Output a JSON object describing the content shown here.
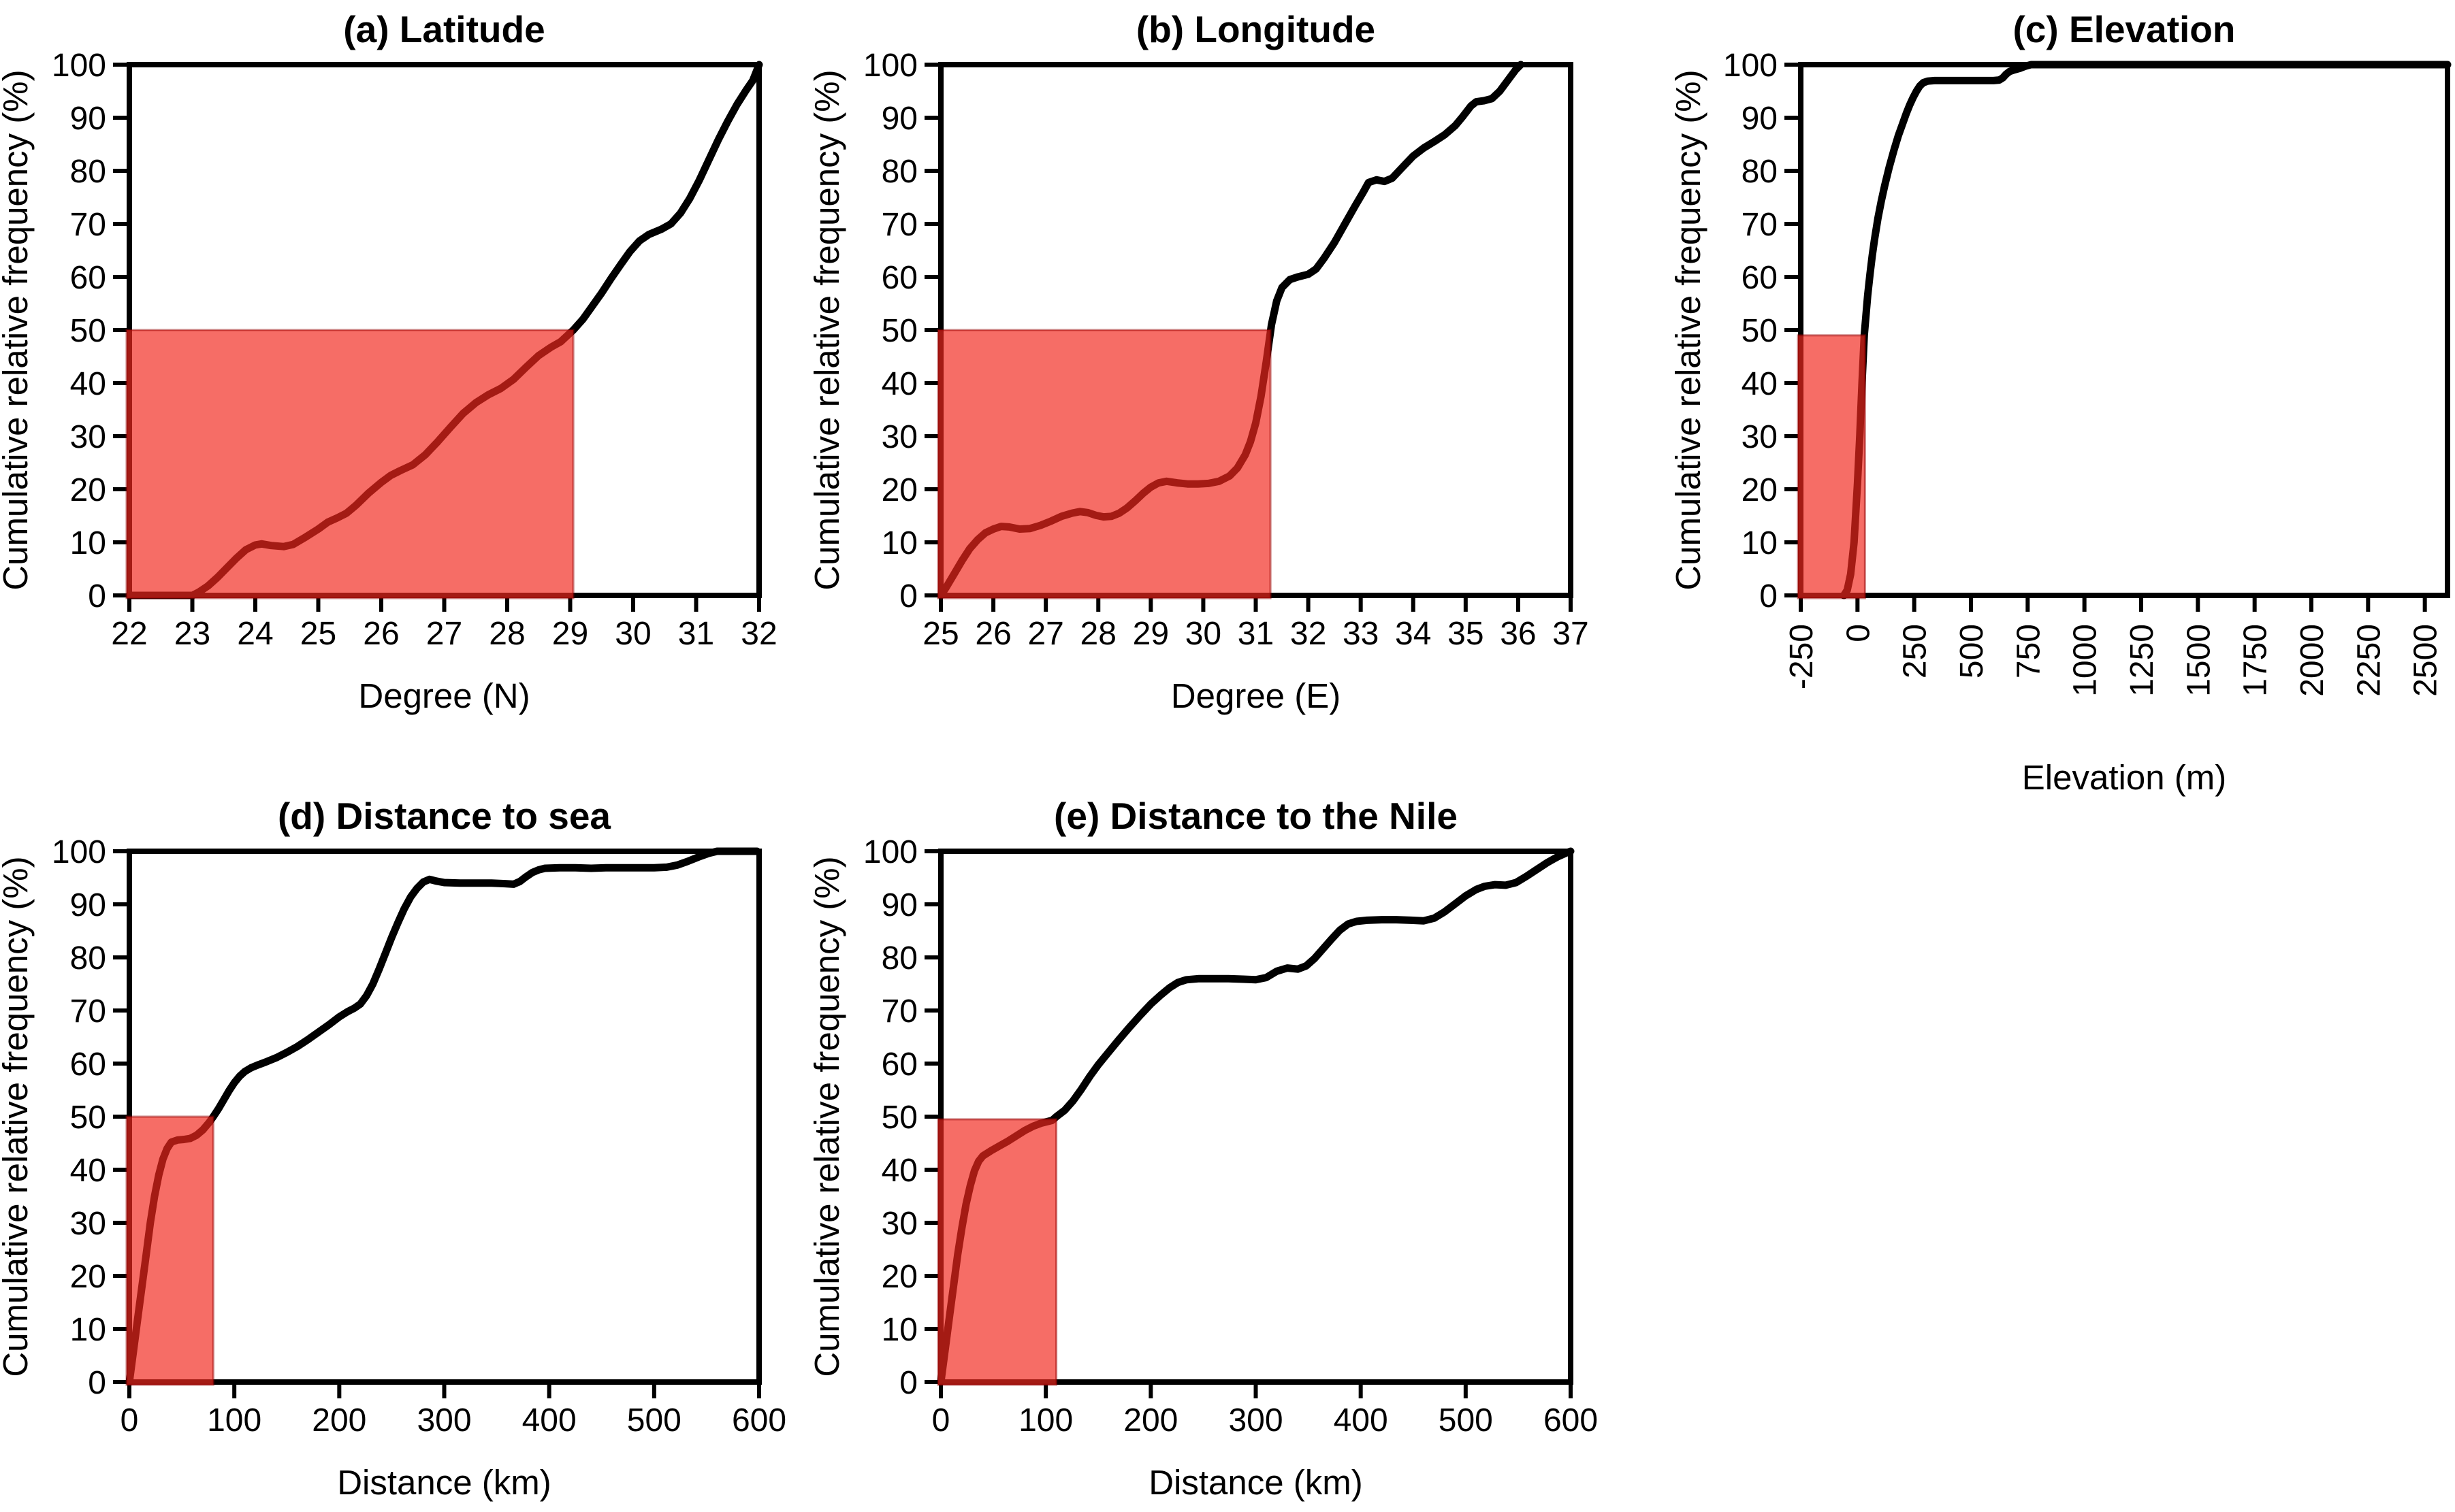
{
  "figure": {
    "background": "#ffffff",
    "curve_color": "#000000",
    "shade_fill_rgba": "rgba(242,40,30,0.68)",
    "shade_edge_rgba": "rgba(150,0,0,0.5)",
    "axis_color": "#000000",
    "ylabel": "Cumulative relative frequency (%)"
  },
  "chart_data": [
    {
      "type": "line",
      "id": "a",
      "title": "(a) Latitude",
      "xlabel": "Degree (N)",
      "ylabel": "Cumulative relative frequency (%)",
      "xlim": [
        22,
        32
      ],
      "ylim": [
        0,
        100
      ],
      "xticks": [
        22,
        23,
        24,
        25,
        26,
        27,
        28,
        29,
        30,
        31,
        32
      ],
      "yticks": [
        0,
        10,
        20,
        30,
        40,
        50,
        60,
        70,
        80,
        90,
        100
      ],
      "xtick_rotation": 0,
      "grid": false,
      "median_x": 29.05,
      "shade": {
        "x0": 22,
        "x1": 29.05,
        "y0": 0,
        "y1": 50
      },
      "series": [
        [
          22,
          0
        ],
        [
          23,
          0
        ],
        [
          23.1,
          0.6
        ],
        [
          23.25,
          1.8
        ],
        [
          23.4,
          3.4
        ],
        [
          23.55,
          5.2
        ],
        [
          23.7,
          7
        ],
        [
          23.85,
          8.6
        ],
        [
          24,
          9.5
        ],
        [
          24.1,
          9.7
        ],
        [
          24.25,
          9.4
        ],
        [
          24.45,
          9.2
        ],
        [
          24.6,
          9.6
        ],
        [
          24.8,
          11
        ],
        [
          25,
          12.5
        ],
        [
          25.15,
          13.8
        ],
        [
          25.3,
          14.6
        ],
        [
          25.45,
          15.5
        ],
        [
          25.6,
          17
        ],
        [
          25.8,
          19.3
        ],
        [
          26,
          21.3
        ],
        [
          26.15,
          22.6
        ],
        [
          26.3,
          23.5
        ],
        [
          26.5,
          24.6
        ],
        [
          26.7,
          26.5
        ],
        [
          26.9,
          29
        ],
        [
          27.1,
          31.7
        ],
        [
          27.3,
          34.3
        ],
        [
          27.5,
          36.3
        ],
        [
          27.7,
          37.8
        ],
        [
          27.9,
          39
        ],
        [
          28.1,
          40.7
        ],
        [
          28.3,
          43
        ],
        [
          28.5,
          45.2
        ],
        [
          28.7,
          46.8
        ],
        [
          28.85,
          47.8
        ],
        [
          29.05,
          50
        ],
        [
          29.2,
          52
        ],
        [
          29.35,
          54.5
        ],
        [
          29.5,
          57
        ],
        [
          29.65,
          59.7
        ],
        [
          29.8,
          62.3
        ],
        [
          29.95,
          64.8
        ],
        [
          30.1,
          66.8
        ],
        [
          30.25,
          68
        ],
        [
          30.45,
          69
        ],
        [
          30.6,
          70
        ],
        [
          30.75,
          72
        ],
        [
          30.9,
          74.8
        ],
        [
          31.05,
          78.2
        ],
        [
          31.2,
          82
        ],
        [
          31.35,
          85.8
        ],
        [
          31.5,
          89.3
        ],
        [
          31.65,
          92.5
        ],
        [
          31.8,
          95.3
        ],
        [
          31.9,
          97
        ],
        [
          32,
          100
        ]
      ]
    },
    {
      "type": "line",
      "id": "b",
      "title": "(b) Longitude",
      "xlabel": "Degree (E)",
      "ylabel": "Cumulative relative frequency (%)",
      "xlim": [
        25,
        37
      ],
      "ylim": [
        0,
        100
      ],
      "xticks": [
        25,
        26,
        27,
        28,
        29,
        30,
        31,
        32,
        33,
        34,
        35,
        36,
        37
      ],
      "yticks": [
        0,
        10,
        20,
        30,
        40,
        50,
        60,
        70,
        80,
        90,
        100
      ],
      "xtick_rotation": 0,
      "grid": false,
      "median_x": 31.28,
      "shade": {
        "x0": 25,
        "x1": 31.28,
        "y0": 0,
        "y1": 50
      },
      "series": [
        [
          25,
          0
        ],
        [
          25.1,
          1.5
        ],
        [
          25.25,
          4
        ],
        [
          25.4,
          6.5
        ],
        [
          25.55,
          8.8
        ],
        [
          25.7,
          10.5
        ],
        [
          25.85,
          11.8
        ],
        [
          26,
          12.5
        ],
        [
          26.15,
          13
        ],
        [
          26.3,
          12.9
        ],
        [
          26.5,
          12.5
        ],
        [
          26.7,
          12.6
        ],
        [
          26.9,
          13.2
        ],
        [
          27.1,
          14
        ],
        [
          27.3,
          14.9
        ],
        [
          27.5,
          15.5
        ],
        [
          27.65,
          15.8
        ],
        [
          27.8,
          15.6
        ],
        [
          27.95,
          15.1
        ],
        [
          28.1,
          14.8
        ],
        [
          28.25,
          14.9
        ],
        [
          28.4,
          15.5
        ],
        [
          28.55,
          16.5
        ],
        [
          28.7,
          17.8
        ],
        [
          28.85,
          19.2
        ],
        [
          29,
          20.4
        ],
        [
          29.15,
          21.2
        ],
        [
          29.3,
          21.5
        ],
        [
          29.5,
          21.2
        ],
        [
          29.7,
          21
        ],
        [
          29.9,
          21
        ],
        [
          30.1,
          21.1
        ],
        [
          30.3,
          21.5
        ],
        [
          30.5,
          22.5
        ],
        [
          30.65,
          24
        ],
        [
          30.8,
          26.5
        ],
        [
          30.9,
          29
        ],
        [
          31,
          32.5
        ],
        [
          31.1,
          37.5
        ],
        [
          31.2,
          44
        ],
        [
          31.3,
          51
        ],
        [
          31.4,
          55.5
        ],
        [
          31.5,
          58
        ],
        [
          31.65,
          59.5
        ],
        [
          31.8,
          60
        ],
        [
          32,
          60.5
        ],
        [
          32.15,
          61.5
        ],
        [
          32.3,
          63.5
        ],
        [
          32.5,
          66.5
        ],
        [
          32.7,
          70
        ],
        [
          32.9,
          73.5
        ],
        [
          33.05,
          76
        ],
        [
          33.15,
          77.8
        ],
        [
          33.3,
          78.3
        ],
        [
          33.45,
          78
        ],
        [
          33.6,
          78.6
        ],
        [
          33.8,
          80.7
        ],
        [
          34,
          82.8
        ],
        [
          34.2,
          84.3
        ],
        [
          34.4,
          85.5
        ],
        [
          34.6,
          86.8
        ],
        [
          34.8,
          88.5
        ],
        [
          34.95,
          90.3
        ],
        [
          35.1,
          92.2
        ],
        [
          35.2,
          93
        ],
        [
          35.35,
          93.2
        ],
        [
          35.5,
          93.6
        ],
        [
          35.65,
          95
        ],
        [
          35.8,
          97
        ],
        [
          35.95,
          99
        ],
        [
          36.05,
          100
        ]
      ]
    },
    {
      "type": "line",
      "id": "c",
      "title": "(c) Elevation",
      "xlabel": "Elevation (m)",
      "ylabel": "Cumulative relative frequency (%)",
      "xlim": [
        -250,
        2600
      ],
      "ylim": [
        0,
        100
      ],
      "xticks": [
        -250,
        0,
        250,
        500,
        750,
        1000,
        1250,
        1500,
        1750,
        2000,
        2250,
        2500
      ],
      "yticks": [
        0,
        10,
        20,
        30,
        40,
        50,
        60,
        70,
        80,
        90,
        100
      ],
      "xtick_rotation": -90,
      "grid": false,
      "median_x": 33,
      "shade": {
        "x0": -250,
        "x1": 33,
        "y0": 0,
        "y1": 49
      },
      "series": [
        [
          -60,
          0
        ],
        [
          -45,
          1
        ],
        [
          -30,
          4
        ],
        [
          -15,
          10
        ],
        [
          0,
          21
        ],
        [
          10,
          30
        ],
        [
          20,
          40
        ],
        [
          30,
          49
        ],
        [
          36,
          52
        ],
        [
          45,
          56.5
        ],
        [
          55,
          60.5
        ],
        [
          65,
          64
        ],
        [
          75,
          67
        ],
        [
          90,
          71
        ],
        [
          105,
          74.3
        ],
        [
          120,
          77.2
        ],
        [
          140,
          80.7
        ],
        [
          160,
          83.8
        ],
        [
          180,
          86.6
        ],
        [
          200,
          89
        ],
        [
          215,
          90.8
        ],
        [
          230,
          92.4
        ],
        [
          245,
          93.8
        ],
        [
          260,
          95
        ],
        [
          275,
          96
        ],
        [
          290,
          96.6
        ],
        [
          310,
          96.9
        ],
        [
          340,
          97
        ],
        [
          400,
          97
        ],
        [
          500,
          97
        ],
        [
          600,
          97
        ],
        [
          625,
          97.1
        ],
        [
          640,
          97.5
        ],
        [
          655,
          98.2
        ],
        [
          670,
          98.7
        ],
        [
          690,
          99
        ],
        [
          715,
          99.3
        ],
        [
          740,
          99.7
        ],
        [
          765,
          100
        ],
        [
          2600,
          100
        ]
      ]
    },
    {
      "type": "line",
      "id": "d",
      "title": "(d) Distance to sea",
      "xlabel": "Distance (km)",
      "ylabel": "Cumulative relative frequency (%)",
      "xlim": [
        0,
        600
      ],
      "ylim": [
        0,
        100
      ],
      "xticks": [
        0,
        100,
        200,
        300,
        400,
        500,
        600
      ],
      "yticks": [
        0,
        10,
        20,
        30,
        40,
        50,
        60,
        70,
        80,
        90,
        100
      ],
      "xtick_rotation": 0,
      "grid": false,
      "median_x": 80,
      "shade": {
        "x0": 0,
        "x1": 80,
        "y0": 0,
        "y1": 50
      },
      "series": [
        [
          0,
          0
        ],
        [
          4,
          6
        ],
        [
          8,
          12
        ],
        [
          12,
          18
        ],
        [
          16,
          24
        ],
        [
          20,
          30
        ],
        [
          24,
          35
        ],
        [
          28,
          39
        ],
        [
          32,
          42
        ],
        [
          36,
          44
        ],
        [
          40,
          45.2
        ],
        [
          46,
          45.6
        ],
        [
          52,
          45.7
        ],
        [
          58,
          45.9
        ],
        [
          64,
          46.5
        ],
        [
          70,
          47.5
        ],
        [
          76,
          48.9
        ],
        [
          80,
          50
        ],
        [
          85,
          51.5
        ],
        [
          90,
          53.2
        ],
        [
          95,
          54.9
        ],
        [
          100,
          56.4
        ],
        [
          105,
          57.6
        ],
        [
          110,
          58.5
        ],
        [
          116,
          59.2
        ],
        [
          122,
          59.7
        ],
        [
          130,
          60.3
        ],
        [
          140,
          61.1
        ],
        [
          150,
          62.1
        ],
        [
          160,
          63.2
        ],
        [
          170,
          64.5
        ],
        [
          180,
          65.9
        ],
        [
          190,
          67.3
        ],
        [
          200,
          68.8
        ],
        [
          208,
          69.8
        ],
        [
          214,
          70.4
        ],
        [
          220,
          71.2
        ],
        [
          226,
          72.8
        ],
        [
          232,
          75
        ],
        [
          238,
          77.8
        ],
        [
          244,
          80.8
        ],
        [
          250,
          83.8
        ],
        [
          256,
          86.6
        ],
        [
          262,
          89.2
        ],
        [
          268,
          91.4
        ],
        [
          274,
          93
        ],
        [
          280,
          94.2
        ],
        [
          286,
          94.7
        ],
        [
          292,
          94.4
        ],
        [
          300,
          94.1
        ],
        [
          315,
          94
        ],
        [
          330,
          94
        ],
        [
          345,
          94
        ],
        [
          358,
          93.9
        ],
        [
          366,
          93.8
        ],
        [
          372,
          94.3
        ],
        [
          378,
          95.2
        ],
        [
          384,
          96
        ],
        [
          390,
          96.5
        ],
        [
          396,
          96.8
        ],
        [
          410,
          96.9
        ],
        [
          425,
          96.9
        ],
        [
          440,
          96.8
        ],
        [
          455,
          96.9
        ],
        [
          470,
          96.9
        ],
        [
          485,
          96.9
        ],
        [
          500,
          96.9
        ],
        [
          512,
          97
        ],
        [
          522,
          97.4
        ],
        [
          532,
          98.1
        ],
        [
          542,
          98.9
        ],
        [
          552,
          99.6
        ],
        [
          560,
          100
        ],
        [
          598,
          100
        ]
      ]
    },
    {
      "type": "line",
      "id": "e",
      "title": "(e) Distance to the Nile",
      "xlabel": "Distance (km)",
      "ylabel": "Cumulative relative frequency (%)",
      "xlim": [
        0,
        600
      ],
      "ylim": [
        0,
        100
      ],
      "xticks": [
        0,
        100,
        200,
        300,
        400,
        500,
        600
      ],
      "yticks": [
        0,
        10,
        20,
        30,
        40,
        50,
        60,
        70,
        80,
        90,
        100
      ],
      "xtick_rotation": 0,
      "grid": false,
      "median_x": 110,
      "shade": {
        "x0": 0,
        "x1": 110,
        "y0": 0,
        "y1": 49.5
      },
      "series": [
        [
          0,
          0
        ],
        [
          4,
          6
        ],
        [
          8,
          12
        ],
        [
          12,
          18
        ],
        [
          16,
          24
        ],
        [
          20,
          29
        ],
        [
          24,
          33.5
        ],
        [
          28,
          37
        ],
        [
          32,
          39.8
        ],
        [
          36,
          41.6
        ],
        [
          40,
          42.6
        ],
        [
          48,
          43.6
        ],
        [
          56,
          44.5
        ],
        [
          64,
          45.4
        ],
        [
          72,
          46.4
        ],
        [
          80,
          47.4
        ],
        [
          88,
          48.2
        ],
        [
          96,
          48.8
        ],
        [
          106,
          49.3
        ],
        [
          110,
          50
        ],
        [
          118,
          51.2
        ],
        [
          126,
          53
        ],
        [
          134,
          55.2
        ],
        [
          142,
          57.6
        ],
        [
          150,
          59.8
        ],
        [
          160,
          62.2
        ],
        [
          170,
          64.6
        ],
        [
          180,
          66.9
        ],
        [
          190,
          69.1
        ],
        [
          200,
          71.2
        ],
        [
          210,
          73
        ],
        [
          218,
          74.3
        ],
        [
          226,
          75.3
        ],
        [
          234,
          75.8
        ],
        [
          246,
          76
        ],
        [
          260,
          76
        ],
        [
          274,
          76
        ],
        [
          288,
          75.9
        ],
        [
          300,
          75.8
        ],
        [
          310,
          76.2
        ],
        [
          320,
          77.4
        ],
        [
          330,
          78
        ],
        [
          340,
          77.8
        ],
        [
          348,
          78.4
        ],
        [
          356,
          79.8
        ],
        [
          364,
          81.6
        ],
        [
          372,
          83.4
        ],
        [
          380,
          85.1
        ],
        [
          388,
          86.3
        ],
        [
          396,
          86.8
        ],
        [
          406,
          87
        ],
        [
          420,
          87.1
        ],
        [
          434,
          87.1
        ],
        [
          448,
          87
        ],
        [
          460,
          86.9
        ],
        [
          470,
          87.4
        ],
        [
          480,
          88.6
        ],
        [
          490,
          90.1
        ],
        [
          500,
          91.6
        ],
        [
          510,
          92.8
        ],
        [
          518,
          93.4
        ],
        [
          528,
          93.7
        ],
        [
          538,
          93.6
        ],
        [
          548,
          94.1
        ],
        [
          558,
          95.3
        ],
        [
          568,
          96.6
        ],
        [
          578,
          97.9
        ],
        [
          588,
          99
        ],
        [
          596,
          99.7
        ],
        [
          600,
          100
        ]
      ]
    }
  ]
}
